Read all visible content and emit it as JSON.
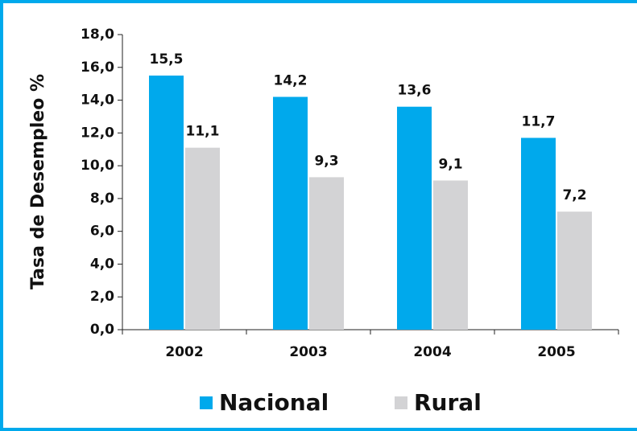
{
  "chart_data": {
    "type": "bar",
    "y_label": "Tasa de Desempleo %",
    "categories": [
      "2002",
      "2003",
      "2004",
      "2005"
    ],
    "series": [
      {
        "name": "Nacional",
        "color": "#00a9ec",
        "values": [
          15.5,
          14.2,
          13.6,
          11.7
        ],
        "value_labels": [
          "15,5",
          "14,2",
          "13,6",
          "11,7"
        ]
      },
      {
        "name": "Rural",
        "color": "#d3d3d5",
        "values": [
          11.1,
          9.3,
          9.1,
          7.2
        ],
        "value_labels": [
          "11,1",
          "9,3",
          "9,1",
          "7,2"
        ]
      }
    ],
    "ylim": [
      0,
      18
    ],
    "yticks": [
      {
        "value": 0,
        "label": "0,0"
      },
      {
        "value": 2,
        "label": "2,0"
      },
      {
        "value": 4,
        "label": "4,0"
      },
      {
        "value": 6,
        "label": "6,0"
      },
      {
        "value": 8,
        "label": "8,0"
      },
      {
        "value": 10,
        "label": "10,0"
      },
      {
        "value": 12,
        "label": "12,0"
      },
      {
        "value": 14,
        "label": "14,0"
      },
      {
        "value": 16,
        "label": "16,0"
      },
      {
        "value": 18,
        "label": "18,0"
      }
    ],
    "legend": "bottom"
  }
}
